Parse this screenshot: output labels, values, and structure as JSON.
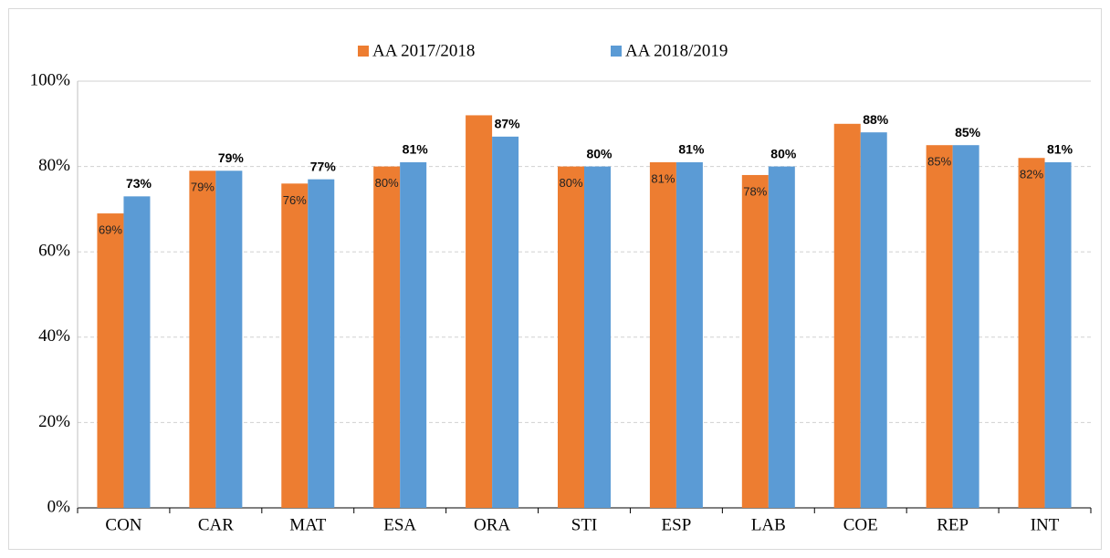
{
  "chart_data": {
    "type": "bar",
    "categories": [
      "CON",
      "CAR",
      "MAT",
      "ESA",
      "ORA",
      "STI",
      "ESP",
      "LAB",
      "COE",
      "REP",
      "INT"
    ],
    "series": [
      {
        "name": "AA 2017/2018",
        "color": "#ed7d31",
        "values": [
          69,
          79,
          76,
          80,
          92,
          80,
          81,
          78,
          90,
          85,
          82
        ],
        "value_labels": [
          "69%",
          "79%",
          "76%",
          "80%",
          null,
          "80%",
          "81%",
          "78%",
          null,
          "85%",
          "82%"
        ]
      },
      {
        "name": "AA 2018/2019",
        "color": "#5b9bd5",
        "values": [
          73,
          79,
          77,
          81,
          87,
          80,
          81,
          80,
          88,
          85,
          81
        ],
        "value_labels": [
          "73%",
          "79%",
          "77%",
          "81%",
          "87%",
          "80%",
          "81%",
          "80%",
          "88%",
          "85%",
          "81%"
        ]
      }
    ],
    "ylim": [
      0,
      100
    ],
    "yticks": [
      {
        "value": 0,
        "label": "0%"
      },
      {
        "value": 20,
        "label": "20%"
      },
      {
        "value": 40,
        "label": "40%"
      },
      {
        "value": 60,
        "label": "60%"
      },
      {
        "value": 80,
        "label": "80%"
      },
      {
        "value": 100,
        "label": "100%"
      }
    ],
    "grid": true,
    "legend": "top"
  }
}
